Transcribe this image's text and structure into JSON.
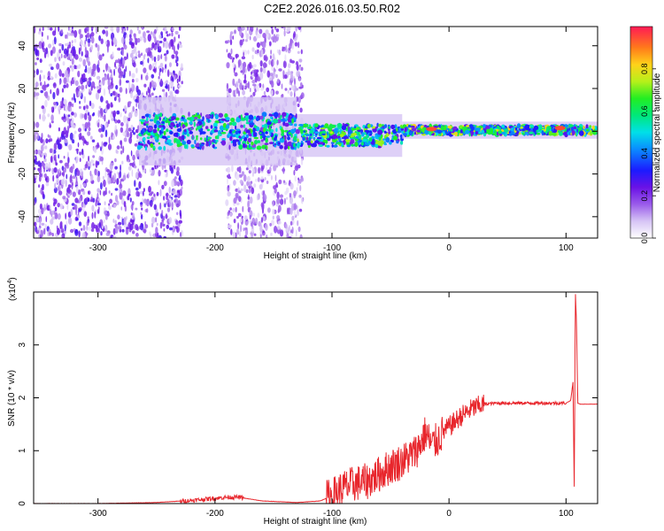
{
  "title": "C2E2.2026.016.03.50.R02",
  "chart_data": [
    {
      "type": "heatmap",
      "title": "",
      "xlabel": "Height of straight line (km)",
      "ylabel": "Frequency (Hz)",
      "xlim": [
        -355,
        127
      ],
      "ylim": [
        -50,
        49
      ],
      "xticks": [
        -300,
        -200,
        -100,
        0,
        100
      ],
      "yticks": [
        -40,
        -20,
        0,
        20,
        40
      ],
      "colorbar": {
        "label": "Normalized spectral amplitude",
        "range": [
          0,
          1
        ],
        "ticks": [
          "0.0",
          "0.2",
          "0.4",
          "0.6",
          "0.8"
        ]
      },
      "features": [
        {
          "x_range": [
            -355,
            -228
          ],
          "f_range": [
            -50,
            49
          ],
          "level": 0.15,
          "desc": "scattered noise"
        },
        {
          "x_range": [
            -190,
            -125
          ],
          "f_range": [
            -50,
            49
          ],
          "level": 0.12,
          "desc": "scattered noise"
        },
        {
          "x_range": [
            -265,
            -130
          ],
          "f_center": 0,
          "f_halfwidth": 8,
          "level": 0.45
        },
        {
          "x_range": [
            -130,
            -40
          ],
          "f_center": -2,
          "f_halfwidth": 5,
          "level": 0.5
        },
        {
          "x_range": [
            -40,
            127
          ],
          "f_center": 0.5,
          "f_halfwidth": 2,
          "level": 0.55
        },
        {
          "x": -15,
          "f": 1,
          "level": 0.95
        },
        {
          "x": 95,
          "f": 1.5,
          "level": 0.95
        }
      ]
    },
    {
      "type": "line",
      "title": "",
      "xlabel": "Height of straight line (km)",
      "ylabel": "SNR (10 * v/v)",
      "y_multiplier": "(x10^4)",
      "xlim": [
        -355,
        127
      ],
      "ylim": [
        0,
        4
      ],
      "xticks": [
        -300,
        -200,
        -100,
        0,
        100
      ],
      "yticks": [
        0,
        1,
        2,
        3
      ],
      "color": "#e8262c",
      "x": [
        -355,
        -300,
        -250,
        -220,
        -200,
        -190,
        -180,
        -160,
        -130,
        -110,
        -100,
        -90,
        -80,
        -70,
        -60,
        -50,
        -40,
        -30,
        -25,
        -20,
        -15,
        -10,
        -5,
        0,
        5,
        10,
        20,
        30,
        40,
        60,
        80,
        100,
        104,
        106,
        107,
        108,
        109,
        110,
        112,
        127
      ],
      "y": [
        0,
        0,
        0.02,
        0.06,
        0.1,
        0.12,
        0.12,
        0.05,
        0.02,
        0.05,
        0.15,
        0.3,
        0.38,
        0.42,
        0.55,
        0.7,
        0.8,
        0.95,
        1.1,
        1.35,
        1.1,
        1.2,
        1.35,
        1.45,
        1.55,
        1.65,
        1.8,
        1.88,
        1.9,
        1.9,
        1.9,
        1.9,
        1.95,
        2.3,
        0.2,
        4.0,
        3.4,
        1.9,
        1.88,
        1.88
      ],
      "noise": [
        {
          "x_range": [
            -230,
            -175
          ],
          "amplitude": 0.04
        },
        {
          "x_range": [
            -105,
            -5
          ],
          "amplitude": 0.35
        },
        {
          "x_range": [
            -5,
            30
          ],
          "amplitude": 0.2
        },
        {
          "x_range": [
            30,
            100
          ],
          "amplitude": 0.03
        }
      ]
    }
  ]
}
